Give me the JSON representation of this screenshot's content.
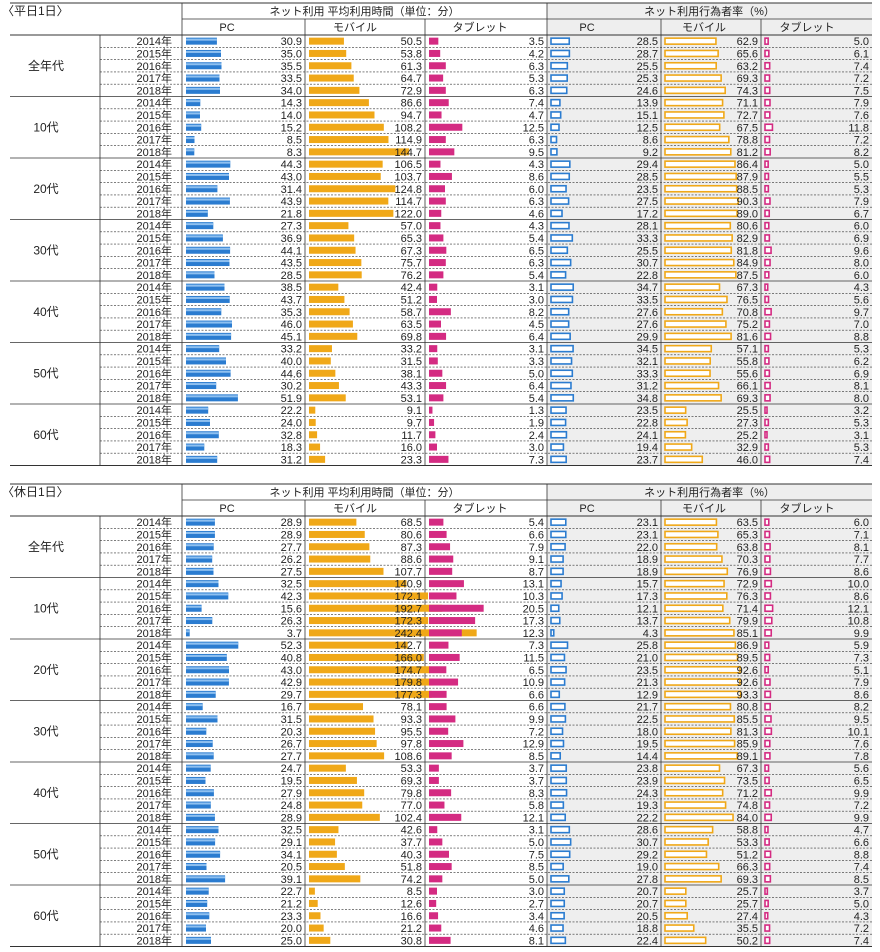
{
  "colors": {
    "pc": "#2b7cd0",
    "mobile": "#f0a818",
    "tablet": "#d42b82",
    "rate_bg": "#eeeeee",
    "line": "#333333"
  },
  "headers": {
    "time": "ネット利用 平均利用時間（単位：分）",
    "rate": "ネット利用行為者率（%）",
    "pc": "PC",
    "mobile": "モバイル",
    "tablet": "タブレット"
  },
  "years": [
    "2014年",
    "2015年",
    "2016年",
    "2017年",
    "2018年"
  ],
  "chart_data": [
    {
      "type": "bar",
      "title": "〈平日1日〉",
      "groups": [
        {
          "label": "全年代",
          "time_pc": [
            "30.9",
            "35.0",
            "35.5",
            "33.5",
            "34.0"
          ],
          "time_mobile": [
            "50.5",
            "53.8",
            "61.3",
            "64.7",
            "72.9"
          ],
          "time_tablet": [
            "3.5",
            "4.2",
            "6.3",
            "5.3",
            "6.3"
          ],
          "rate_pc": [
            "28.5",
            "28.7",
            "25.5",
            "25.3",
            "24.6"
          ],
          "rate_mobile": [
            "62.9",
            "65.6",
            "63.2",
            "69.3",
            "74.3"
          ],
          "rate_tablet": [
            "5.0",
            "6.1",
            "7.4",
            "7.2",
            "7.5"
          ]
        },
        {
          "label": "10代",
          "time_pc": [
            "14.3",
            "14.0",
            "15.2",
            "8.5",
            "8.3"
          ],
          "time_mobile": [
            "86.6",
            "94.7",
            "108.2",
            "114.9",
            "144.7"
          ],
          "time_tablet": [
            "7.4",
            "4.7",
            "12.5",
            "6.3",
            "9.5"
          ],
          "rate_pc": [
            "13.9",
            "15.1",
            "12.5",
            "8.6",
            "9.2"
          ],
          "rate_mobile": [
            "71.1",
            "72.7",
            "67.5",
            "78.8",
            "81.2"
          ],
          "rate_tablet": [
            "7.9",
            "7.6",
            "11.8",
            "7.2",
            "8.2"
          ]
        },
        {
          "label": "20代",
          "time_pc": [
            "44.3",
            "43.0",
            "31.4",
            "43.9",
            "21.8"
          ],
          "time_mobile": [
            "106.5",
            "103.7",
            "124.8",
            "114.7",
            "122.0"
          ],
          "time_tablet": [
            "4.3",
            "8.6",
            "6.0",
            "6.3",
            "4.6"
          ],
          "rate_pc": [
            "29.4",
            "28.5",
            "23.5",
            "27.5",
            "17.2"
          ],
          "rate_mobile": [
            "86.4",
            "87.9",
            "88.5",
            "90.3",
            "89.0"
          ],
          "rate_tablet": [
            "5.0",
            "5.5",
            "5.3",
            "7.9",
            "6.7"
          ]
        },
        {
          "label": "30代",
          "time_pc": [
            "27.3",
            "36.9",
            "44.1",
            "43.5",
            "28.5"
          ],
          "time_mobile": [
            "57.0",
            "65.3",
            "67.3",
            "75.7",
            "76.2"
          ],
          "time_tablet": [
            "4.3",
            "5.4",
            "6.5",
            "6.3",
            "5.4"
          ],
          "rate_pc": [
            "28.1",
            "33.3",
            "25.5",
            "30.7",
            "22.8"
          ],
          "rate_mobile": [
            "80.6",
            "82.9",
            "81.8",
            "84.9",
            "87.5"
          ],
          "rate_tablet": [
            "6.0",
            "6.9",
            "9.6",
            "8.0",
            "6.0"
          ]
        },
        {
          "label": "40代",
          "time_pc": [
            "38.5",
            "43.7",
            "35.3",
            "46.0",
            "45.1"
          ],
          "time_mobile": [
            "42.4",
            "51.2",
            "58.7",
            "63.5",
            "69.8"
          ],
          "time_tablet": [
            "3.1",
            "3.0",
            "8.2",
            "4.5",
            "6.4"
          ],
          "rate_pc": [
            "34.7",
            "33.5",
            "27.6",
            "27.6",
            "29.9"
          ],
          "rate_mobile": [
            "67.3",
            "76.5",
            "70.8",
            "75.2",
            "81.6"
          ],
          "rate_tablet": [
            "4.3",
            "5.6",
            "9.7",
            "7.0",
            "8.8"
          ]
        },
        {
          "label": "50代",
          "time_pc": [
            "33.2",
            "40.0",
            "44.6",
            "30.2",
            "51.9"
          ],
          "time_mobile": [
            "33.2",
            "31.5",
            "38.1",
            "43.3",
            "53.1"
          ],
          "time_tablet": [
            "3.1",
            "3.3",
            "5.0",
            "6.4",
            "5.4"
          ],
          "rate_pc": [
            "34.5",
            "32.1",
            "33.3",
            "31.2",
            "34.8"
          ],
          "rate_mobile": [
            "57.1",
            "55.8",
            "55.6",
            "66.1",
            "69.3"
          ],
          "rate_tablet": [
            "5.3",
            "6.2",
            "6.9",
            "8.1",
            "8.0"
          ]
        },
        {
          "label": "60代",
          "time_pc": [
            "22.2",
            "24.0",
            "32.8",
            "18.3",
            "31.2"
          ],
          "time_mobile": [
            "9.1",
            "9.7",
            "11.7",
            "16.0",
            "23.3"
          ],
          "time_tablet": [
            "1.3",
            "1.9",
            "2.4",
            "3.0",
            "7.3"
          ],
          "rate_pc": [
            "23.5",
            "22.8",
            "24.1",
            "19.4",
            "23.7"
          ],
          "rate_mobile": [
            "25.5",
            "27.3",
            "25.2",
            "32.9",
            "46.0"
          ],
          "rate_tablet": [
            "3.2",
            "5.3",
            "3.1",
            "5.3",
            "7.4"
          ]
        }
      ]
    },
    {
      "type": "bar",
      "title": "〈休日1日〉",
      "groups": [
        {
          "label": "全年代",
          "time_pc": [
            "28.9",
            "28.9",
            "27.7",
            "26.2",
            "27.5"
          ],
          "time_mobile": [
            "68.5",
            "80.6",
            "87.3",
            "88.6",
            "107.7"
          ],
          "time_tablet": [
            "5.4",
            "6.6",
            "7.9",
            "9.1",
            "8.7"
          ],
          "rate_pc": [
            "23.1",
            "23.1",
            "22.0",
            "18.9",
            "18.9"
          ],
          "rate_mobile": [
            "63.5",
            "65.3",
            "63.8",
            "70.3",
            "76.9"
          ],
          "rate_tablet": [
            "6.0",
            "7.1",
            "8.1",
            "7.7",
            "8.6"
          ]
        },
        {
          "label": "10代",
          "time_pc": [
            "32.5",
            "42.3",
            "15.6",
            "26.3",
            "3.7"
          ],
          "time_mobile": [
            "140.9",
            "172.1",
            "192.7",
            "172.3",
            "242.4"
          ],
          "time_tablet": [
            "13.1",
            "10.3",
            "20.5",
            "17.3",
            "12.3"
          ],
          "rate_pc": [
            "15.7",
            "17.3",
            "12.1",
            "13.7",
            "4.3"
          ],
          "rate_mobile": [
            "72.9",
            "76.3",
            "71.4",
            "79.9",
            "85.1"
          ],
          "rate_tablet": [
            "10.0",
            "8.6",
            "12.1",
            "10.8",
            "9.9"
          ]
        },
        {
          "label": "20代",
          "time_pc": [
            "52.3",
            "40.8",
            "43.0",
            "42.9",
            "29.7"
          ],
          "time_mobile": [
            "142.7",
            "166.0",
            "174.7",
            "179.8",
            "177.3"
          ],
          "time_tablet": [
            "7.3",
            "11.5",
            "6.5",
            "10.9",
            "6.6"
          ],
          "rate_pc": [
            "25.8",
            "21.0",
            "23.5",
            "21.3",
            "12.9"
          ],
          "rate_mobile": [
            "86.9",
            "89.5",
            "92.6",
            "92.6",
            "93.3"
          ],
          "rate_tablet": [
            "5.9",
            "7.3",
            "5.1",
            "7.9",
            "8.6"
          ]
        },
        {
          "label": "30代",
          "time_pc": [
            "16.7",
            "31.5",
            "20.3",
            "26.7",
            "27.7"
          ],
          "time_mobile": [
            "78.1",
            "93.3",
            "95.5",
            "97.8",
            "108.6"
          ],
          "time_tablet": [
            "6.6",
            "9.9",
            "7.2",
            "12.9",
            "8.5"
          ],
          "rate_pc": [
            "21.7",
            "22.5",
            "18.0",
            "19.5",
            "14.4"
          ],
          "rate_mobile": [
            "80.8",
            "85.5",
            "81.3",
            "85.9",
            "89.1"
          ],
          "rate_tablet": [
            "8.2",
            "9.5",
            "10.1",
            "7.6",
            "7.8"
          ]
        },
        {
          "label": "40代",
          "time_pc": [
            "24.7",
            "19.5",
            "27.9",
            "24.8",
            "28.9"
          ],
          "time_mobile": [
            "53.3",
            "69.3",
            "79.8",
            "77.0",
            "102.4"
          ],
          "time_tablet": [
            "3.7",
            "3.7",
            "8.3",
            "5.8",
            "12.1"
          ],
          "rate_pc": [
            "23.8",
            "23.9",
            "24.3",
            "19.3",
            "22.2"
          ],
          "rate_mobile": [
            "67.3",
            "73.5",
            "71.2",
            "74.8",
            "84.0"
          ],
          "rate_tablet": [
            "5.6",
            "6.5",
            "9.9",
            "7.2",
            "9.9"
          ]
        },
        {
          "label": "50代",
          "time_pc": [
            "32.5",
            "29.1",
            "34.1",
            "20.5",
            "39.1"
          ],
          "time_mobile": [
            "42.6",
            "37.7",
            "40.3",
            "51.8",
            "74.2"
          ],
          "time_tablet": [
            "3.1",
            "5.0",
            "7.5",
            "8.5",
            "5.0"
          ],
          "rate_pc": [
            "28.6",
            "30.7",
            "29.2",
            "19.0",
            "27.8"
          ],
          "rate_mobile": [
            "58.8",
            "53.3",
            "51.2",
            "66.3",
            "69.3"
          ],
          "rate_tablet": [
            "4.7",
            "6.6",
            "8.8",
            "7.4",
            "8.5"
          ]
        },
        {
          "label": "60代",
          "time_pc": [
            "22.7",
            "21.2",
            "23.3",
            "20.0",
            "25.0"
          ],
          "time_mobile": [
            "8.5",
            "12.6",
            "16.6",
            "21.2",
            "30.8"
          ],
          "time_tablet": [
            "3.0",
            "2.7",
            "3.4",
            "4.6",
            "8.1"
          ],
          "rate_pc": [
            "20.7",
            "20.7",
            "20.5",
            "18.8",
            "22.4"
          ],
          "rate_mobile": [
            "25.7",
            "25.7",
            "27.4",
            "35.5",
            "50.2"
          ],
          "rate_tablet": [
            "3.7",
            "5.0",
            "4.3",
            "7.2",
            "7.4"
          ]
        }
      ]
    }
  ]
}
